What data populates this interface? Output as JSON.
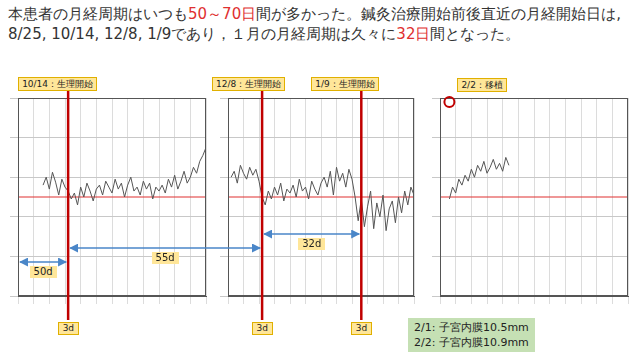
{
  "title_segments": [
    {
      "text": "本患者の月経周期はいつも"
    },
    {
      "text": "50～70日",
      "color": "#e03030"
    },
    {
      "text": "間が多かった。鍼灸治療開始前後直近の月経開始日は, 8/25, 10/14, 12/8, 1/9であり，１月の月経周期は久々に"
    },
    {
      "text": "32日",
      "color": "#e03030"
    },
    {
      "text": "間となった。"
    }
  ],
  "chart_data": [
    {
      "type": "line",
      "color": "#555555",
      "x": [
        8,
        9,
        10,
        11,
        12,
        13,
        14,
        15,
        16,
        17,
        18,
        19,
        20,
        21,
        22,
        23,
        24,
        25,
        26,
        27,
        28,
        29,
        30,
        31,
        32,
        33,
        34,
        35,
        36,
        37,
        38,
        39,
        40,
        41,
        42,
        43,
        44,
        45,
        46,
        47,
        48,
        49,
        50,
        51,
        52,
        53,
        54,
        55,
        56,
        57,
        58,
        59,
        60
      ],
      "values": [
        36.72,
        36.8,
        36.68,
        36.85,
        36.75,
        36.62,
        36.78,
        36.7,
        36.66,
        36.58,
        36.64,
        36.52,
        36.7,
        36.6,
        36.74,
        36.66,
        36.56,
        36.68,
        36.72,
        36.62,
        36.76,
        36.7,
        36.64,
        36.78,
        36.68,
        36.74,
        36.6,
        36.72,
        36.8,
        36.66,
        36.7,
        36.62,
        36.76,
        36.68,
        36.74,
        36.58,
        36.7,
        36.66,
        36.72,
        36.64,
        36.78,
        36.7,
        36.82,
        36.68,
        36.76,
        36.86,
        36.74,
        36.8,
        36.9,
        36.84,
        36.96,
        37.02,
        37.1
      ],
      "xlim": [
        0,
        60
      ],
      "xticks": [
        0,
        5,
        10,
        15,
        20,
        25,
        30,
        35,
        40,
        45,
        50,
        55,
        60
      ],
      "ylim": [
        35.6,
        37.6
      ],
      "yticks": [
        35.6,
        36.0,
        36.4,
        36.8,
        37.2,
        37.6
      ],
      "grid": true,
      "tick_labels": false,
      "reference_line": {
        "value": 36.6,
        "color": "#e03030"
      },
      "events": [
        {
          "x": 16,
          "label": "10/14：生理開始",
          "marker": "line",
          "color": "#c00000",
          "duration_label": "3d"
        }
      ]
    },
    {
      "type": "line",
      "color": "#555555",
      "x": [
        1,
        2,
        3,
        4,
        5,
        6,
        7,
        8,
        9,
        10,
        11,
        12,
        13,
        14,
        15,
        16,
        17,
        18,
        19,
        20,
        21,
        22,
        23,
        24,
        25,
        26,
        27,
        28,
        29,
        30,
        31,
        32,
        33,
        34,
        35,
        36,
        37,
        38,
        39,
        40,
        41,
        42,
        43,
        44,
        45,
        46,
        47,
        48,
        49,
        50,
        51,
        52,
        53,
        54,
        55,
        56,
        57,
        58,
        59,
        60
      ],
      "values": [
        36.8,
        36.86,
        36.74,
        36.92,
        36.84,
        36.78,
        36.9,
        36.82,
        36.88,
        36.76,
        36.6,
        36.52,
        36.66,
        36.58,
        36.7,
        36.62,
        36.74,
        36.56,
        36.68,
        36.64,
        36.72,
        36.6,
        36.78,
        36.66,
        36.7,
        36.58,
        36.76,
        36.68,
        36.62,
        36.74,
        36.8,
        36.7,
        36.86,
        36.62,
        36.9,
        36.76,
        36.84,
        36.7,
        36.88,
        36.78,
        36.6,
        36.36,
        36.58,
        36.3,
        36.5,
        36.66,
        36.28,
        36.54,
        36.4,
        36.62,
        36.26,
        36.48,
        36.56,
        36.34,
        36.6,
        36.44,
        36.66,
        36.52,
        36.7,
        36.62
      ],
      "xlim": [
        0,
        60
      ],
      "xticks": [
        0,
        5,
        10,
        15,
        20,
        25,
        30,
        35,
        40,
        45,
        50,
        55,
        60
      ],
      "ylim": [
        35.6,
        37.6
      ],
      "yticks": [
        35.6,
        36.0,
        36.4,
        36.8,
        37.2,
        37.6
      ],
      "grid": true,
      "tick_labels": false,
      "reference_line": {
        "value": 36.6,
        "color": "#e03030"
      },
      "events": [
        {
          "x": 11,
          "label": "12/8：生理開始",
          "marker": "line",
          "color": "#c00000",
          "duration_label": "3d"
        },
        {
          "x": 43,
          "label": "1/9：生理開始",
          "marker": "line",
          "color": "#c00000",
          "duration_label": "3d"
        }
      ]
    },
    {
      "type": "line",
      "color": "#555555",
      "x": [
        3,
        4,
        5,
        6,
        7,
        8,
        9,
        10,
        11,
        12,
        13,
        14,
        15,
        16,
        17,
        18,
        19,
        20,
        21,
        22
      ],
      "values": [
        36.58,
        36.7,
        36.64,
        36.78,
        36.72,
        36.82,
        36.76,
        36.88,
        36.8,
        36.92,
        36.86,
        36.96,
        36.84,
        36.9,
        36.98,
        36.88,
        36.94,
        36.86,
        37.0,
        36.92
      ],
      "xlim": [
        0,
        60
      ],
      "xticks": [
        0,
        5,
        10,
        15,
        20,
        25,
        30,
        35,
        40,
        45,
        50,
        55,
        60
      ],
      "ylim": [
        35.6,
        37.6
      ],
      "yticks": [
        35.6,
        36.0,
        36.4,
        36.8,
        37.2,
        37.6
      ],
      "grid": true,
      "tick_labels": false,
      "reference_line": {
        "value": 36.6,
        "color": "#e03030"
      },
      "events": [
        {
          "x": 3,
          "label": "2/2：移植",
          "marker": "circle",
          "color": "#c00000"
        }
      ]
    }
  ],
  "spans": [
    {
      "label": "50d",
      "color": "#4a86c8",
      "from": {
        "chart": 0,
        "x": 0
      },
      "to": {
        "chart": 0,
        "x": 16
      }
    },
    {
      "label": "55d",
      "color": "#4a86c8",
      "from": {
        "chart": 0,
        "x": 16
      },
      "to": {
        "chart": 1,
        "x": 11
      }
    },
    {
      "label": "32d",
      "color": "#4a86c8",
      "from": {
        "chart": 1,
        "x": 11
      },
      "to": {
        "chart": 1,
        "x": 43
      }
    }
  ],
  "notes": [
    "2/1: 子宮内膜10.5mm",
    "2/2: 子宮内膜10.9mm"
  ]
}
